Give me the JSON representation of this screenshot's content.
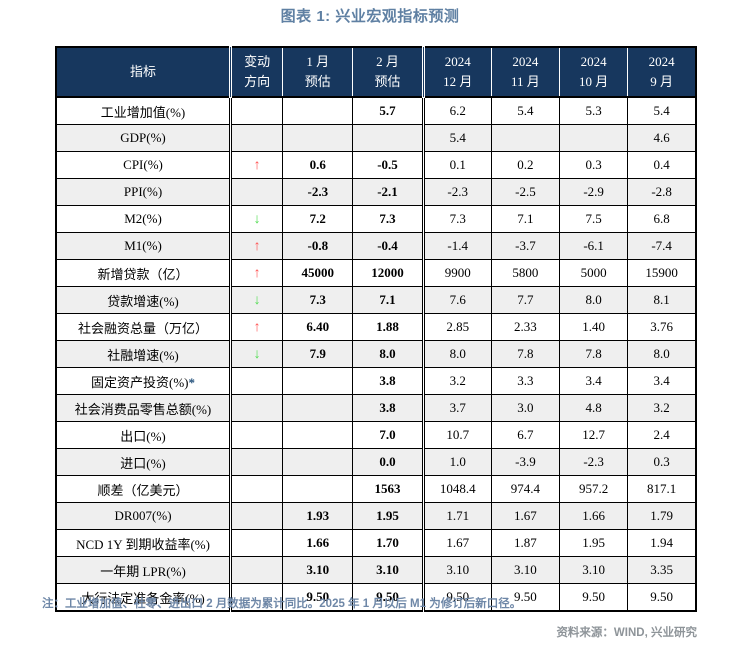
{
  "title": "图表 1: 兴业宏观指标预测",
  "note": "注：工业增加值、社零、进出口 2 月数据为累计同比。2025 年 1 月以后 M1 为修订后新口径。",
  "source": "资料来源：WIND, 兴业研究",
  "colors": {
    "header_bg": "#17375E",
    "title_text": "#5F80A3",
    "note_text": "#6E87A7",
    "source_text": "#8E9499",
    "row_stripe": "#EFEFEF",
    "arrow_up": "#FF5050",
    "arrow_down": "#4FDC4F",
    "footnote_star": "#1F4E79"
  },
  "table": {
    "header": {
      "indicator": "指标",
      "columns": [
        {
          "line1": "变动",
          "line2": "方向"
        },
        {
          "line1": "1 月",
          "line2": "预估"
        },
        {
          "line1": "2 月",
          "line2": "预估"
        },
        {
          "line1": "2024",
          "line2": "12 月"
        },
        {
          "line1": "2024",
          "line2": "11 月"
        },
        {
          "line1": "2024",
          "line2": "10 月"
        },
        {
          "line1": "2024",
          "line2": "9 月"
        }
      ]
    },
    "rows": [
      {
        "label": "工业增加值(%)",
        "star": "",
        "arrow": "",
        "dir": "",
        "jan_est": "",
        "feb_est": "5.7",
        "dec24": "6.2",
        "nov24": "5.4",
        "oct24": "5.3",
        "sep24": "5.4"
      },
      {
        "label": "GDP(%)",
        "star": "",
        "arrow": "",
        "dir": "",
        "jan_est": "",
        "feb_est": "",
        "dec24": "5.4",
        "nov24": "",
        "oct24": "",
        "sep24": "4.6"
      },
      {
        "label": "CPI(%)",
        "star": "",
        "arrow": "↑",
        "dir": "up",
        "jan_est": "0.6",
        "feb_est": "-0.5",
        "dec24": "0.1",
        "nov24": "0.2",
        "oct24": "0.3",
        "sep24": "0.4"
      },
      {
        "label": "PPI(%)",
        "star": "",
        "arrow": "",
        "dir": "",
        "jan_est": "-2.3",
        "feb_est": "-2.1",
        "dec24": "-2.3",
        "nov24": "-2.5",
        "oct24": "-2.9",
        "sep24": "-2.8"
      },
      {
        "label": "M2(%)",
        "star": "",
        "arrow": "↓",
        "dir": "down",
        "jan_est": "7.2",
        "feb_est": "7.3",
        "dec24": "7.3",
        "nov24": "7.1",
        "oct24": "7.5",
        "sep24": "6.8"
      },
      {
        "label": "M1(%)",
        "star": "",
        "arrow": "↑",
        "dir": "up",
        "jan_est": "-0.8",
        "feb_est": "-0.4",
        "dec24": "-1.4",
        "nov24": "-3.7",
        "oct24": "-6.1",
        "sep24": "-7.4"
      },
      {
        "label": "新增贷款（亿）",
        "star": "",
        "arrow": "↑",
        "dir": "up",
        "jan_est": "45000",
        "feb_est": "12000",
        "dec24": "9900",
        "nov24": "5800",
        "oct24": "5000",
        "sep24": "15900"
      },
      {
        "label": "贷款增速(%)",
        "star": "",
        "arrow": "↓",
        "dir": "down",
        "jan_est": "7.3",
        "feb_est": "7.1",
        "dec24": "7.6",
        "nov24": "7.7",
        "oct24": "8.0",
        "sep24": "8.1"
      },
      {
        "label": "社会融资总量（万亿）",
        "star": "",
        "arrow": "↑",
        "dir": "up",
        "jan_est": "6.40",
        "feb_est": "1.88",
        "dec24": "2.85",
        "nov24": "2.33",
        "oct24": "1.40",
        "sep24": "3.76"
      },
      {
        "label": "社融增速(%)",
        "star": "",
        "arrow": "↓",
        "dir": "down",
        "jan_est": "7.9",
        "feb_est": "8.0",
        "dec24": "8.0",
        "nov24": "7.8",
        "oct24": "7.8",
        "sep24": "8.0"
      },
      {
        "label": "固定资产投资(%)",
        "star": "*",
        "arrow": "",
        "dir": "",
        "jan_est": "",
        "feb_est": "3.8",
        "dec24": "3.2",
        "nov24": "3.3",
        "oct24": "3.4",
        "sep24": "3.4"
      },
      {
        "label": "社会消费品零售总额(%)",
        "star": "",
        "arrow": "",
        "dir": "",
        "jan_est": "",
        "feb_est": "3.8",
        "dec24": "3.7",
        "nov24": "3.0",
        "oct24": "4.8",
        "sep24": "3.2"
      },
      {
        "label": "出口(%)",
        "star": "",
        "arrow": "",
        "dir": "",
        "jan_est": "",
        "feb_est": "7.0",
        "dec24": "10.7",
        "nov24": "6.7",
        "oct24": "12.7",
        "sep24": "2.4"
      },
      {
        "label": "进口(%)",
        "star": "",
        "arrow": "",
        "dir": "",
        "jan_est": "",
        "feb_est": "0.0",
        "dec24": "1.0",
        "nov24": "-3.9",
        "oct24": "-2.3",
        "sep24": "0.3"
      },
      {
        "label": "顺差（亿美元）",
        "star": "",
        "arrow": "",
        "dir": "",
        "jan_est": "",
        "feb_est": "1563",
        "dec24": "1048.4",
        "nov24": "974.4",
        "oct24": "957.2",
        "sep24": "817.1"
      },
      {
        "label": "DR007(%)",
        "star": "",
        "arrow": "",
        "dir": "",
        "jan_est": "1.93",
        "feb_est": "1.95",
        "dec24": "1.71",
        "nov24": "1.67",
        "oct24": "1.66",
        "sep24": "1.79"
      },
      {
        "label": "NCD 1Y 到期收益率(%)",
        "star": "",
        "arrow": "",
        "dir": "",
        "jan_est": "1.66",
        "feb_est": "1.70",
        "dec24": "1.67",
        "nov24": "1.87",
        "oct24": "1.95",
        "sep24": "1.94"
      },
      {
        "label": "一年期 LPR(%)",
        "star": "",
        "arrow": "",
        "dir": "",
        "jan_est": "3.10",
        "feb_est": "3.10",
        "dec24": "3.10",
        "nov24": "3.10",
        "oct24": "3.10",
        "sep24": "3.35"
      },
      {
        "label": "大行法定准备金率(%)",
        "star": "",
        "arrow": "",
        "dir": "",
        "jan_est": "9.50",
        "feb_est": "9.50",
        "dec24": "9.50",
        "nov24": "9.50",
        "oct24": "9.50",
        "sep24": "9.50"
      }
    ]
  }
}
